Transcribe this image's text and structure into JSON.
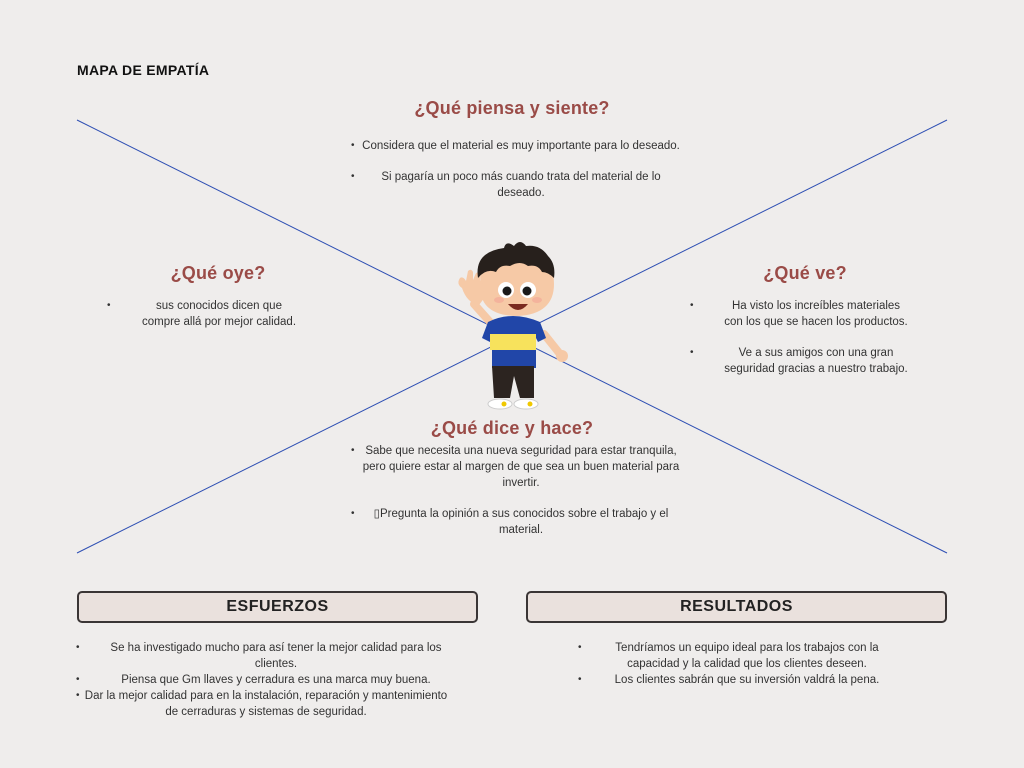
{
  "page_title": "MAPA DE EMPATÍA",
  "piensa": {
    "title": "¿Qué piensa y siente?",
    "items": [
      "Considera que el material es muy importante para lo deseado.",
      "Si pagaría un poco más cuando trata del material de lo deseado."
    ]
  },
  "oye": {
    "title": "¿Qué oye?",
    "items": [
      "sus conocidos dicen que compre allá por mejor calidad."
    ]
  },
  "ve": {
    "title": "¿Qué ve?",
    "items": [
      "Ha visto los increíbles materiales con los que se hacen los productos.",
      "Ve a sus amigos con una gran seguridad gracias a nuestro trabajo."
    ]
  },
  "dice": {
    "title": "¿Qué dice y hace?",
    "items": [
      "Sabe que necesita una nueva seguridad para estar tranquila, pero quiere estar  al margen de que sea un buen material para invertir.",
      "▯Pregunta la opinión a sus conocidos sobre el trabajo y el material."
    ]
  },
  "esfuerzos": {
    "title": "ESFUERZOS",
    "items": [
      "Se ha investigado mucho para así tener la mejor calidad para los clientes.",
      "Piensa que Gm llaves y cerradura es una marca muy buena.",
      "Dar la mejor calidad para en la instalación, reparación y mantenimiento de cerraduras y sistemas de seguridad."
    ]
  },
  "resultados": {
    "title": "RESULTADOS",
    "items": [
      "Tendríamos un equipo ideal para los trabajos con la capacidad y la calidad que los clientes deseen.",
      "Los clientes sabrán que su inversión valdrá la pena."
    ]
  },
  "colors": {
    "background": "#efedec",
    "heading": "#9a4b47",
    "lines": "#2e4fb3",
    "box_fill": "#eae1dd"
  }
}
